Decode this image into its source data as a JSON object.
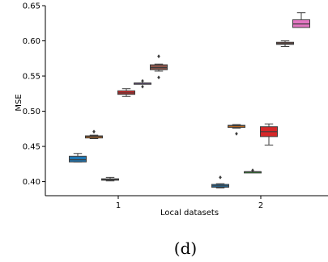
{
  "chart_data": {
    "type": "box",
    "xlabel": "Local datasets",
    "ylabel": "MSE",
    "ylim": [
      0.38,
      0.65
    ],
    "yticks": [
      0.4,
      0.45,
      0.5,
      0.55,
      0.6,
      0.65
    ],
    "ytick_labels": [
      "0.40",
      "0.45",
      "0.50",
      "0.55",
      "0.60",
      "0.65"
    ],
    "categories": [
      "1",
      "2"
    ],
    "grid": false,
    "legend": "none",
    "colors": [
      "#1f77b4",
      "#ff7f0e",
      "#2ca02c",
      "#d62728",
      "#9467bd",
      "#8c564b",
      "#e377c2"
    ],
    "groups": [
      {
        "category": "1",
        "boxes": [
          {
            "whislo": 0.428,
            "q1": 0.428,
            "med": 0.431,
            "q3": 0.436,
            "whishi": 0.44,
            "fliers": []
          },
          {
            "whislo": 0.461,
            "q1": 0.462,
            "med": 0.464,
            "q3": 0.465,
            "whishi": 0.466,
            "fliers": [
              0.471
            ]
          },
          {
            "whislo": 0.401,
            "q1": 0.402,
            "med": 0.403,
            "q3": 0.404,
            "whishi": 0.406,
            "fliers": []
          },
          {
            "whislo": 0.521,
            "q1": 0.524,
            "med": 0.526,
            "q3": 0.529,
            "whishi": 0.532,
            "fliers": []
          },
          {
            "whislo": 0.539,
            "q1": 0.539,
            "med": 0.54,
            "q3": 0.54,
            "whishi": 0.54,
            "fliers": [
              0.543,
              0.535
            ]
          },
          {
            "whislo": 0.557,
            "q1": 0.559,
            "med": 0.562,
            "q3": 0.566,
            "whishi": 0.567,
            "fliers": [
              0.578,
              0.548
            ]
          }
        ]
      },
      {
        "category": "2",
        "boxes": [
          {
            "whislo": 0.391,
            "q1": 0.392,
            "med": 0.394,
            "q3": 0.396,
            "whishi": 0.397,
            "fliers": [
              0.406
            ]
          },
          {
            "whislo": 0.476,
            "q1": 0.477,
            "med": 0.479,
            "q3": 0.48,
            "whishi": 0.481,
            "fliers": [
              0.468
            ]
          },
          {
            "whislo": 0.413,
            "q1": 0.413,
            "med": 0.414,
            "q3": 0.414,
            "whishi": 0.414,
            "fliers": [
              0.416
            ]
          },
          {
            "whislo": 0.452,
            "q1": 0.464,
            "med": 0.471,
            "q3": 0.478,
            "whishi": 0.482,
            "fliers": []
          },
          {
            "whislo": 0.592,
            "q1": 0.595,
            "med": 0.596,
            "q3": 0.598,
            "whishi": 0.6,
            "fliers": []
          },
          {
            "whislo": 0.619,
            "q1": 0.619,
            "med": 0.624,
            "q3": 0.63,
            "whishi": 0.64,
            "fliers": []
          }
        ]
      }
    ],
    "group_color_index": [
      [
        0,
        1,
        2,
        3,
        4,
        5
      ],
      [
        0,
        1,
        2,
        3,
        5,
        6
      ]
    ]
  },
  "caption": "(d)"
}
